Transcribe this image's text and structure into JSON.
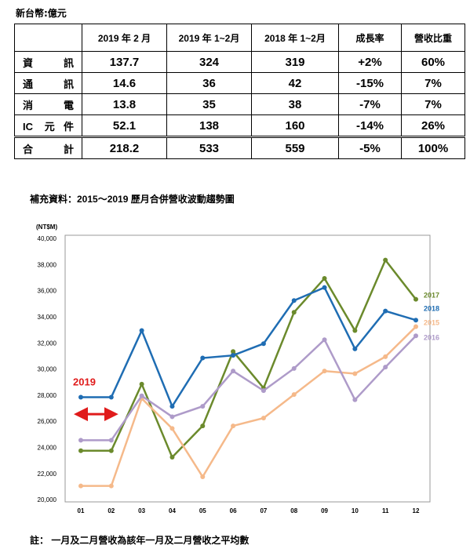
{
  "unit": "新台幣:億元",
  "table": {
    "columns": [
      "2019 年 2 月",
      "2019 年 1~2月",
      "2018 年 1~2月",
      "成長率",
      "營收比重"
    ],
    "rows": [
      {
        "label": "資訊",
        "cells": [
          "137.7",
          "324",
          "319",
          "+2%",
          "60%"
        ]
      },
      {
        "label": "通訊",
        "cells": [
          "14.6",
          "36",
          "42",
          "-15%",
          "7%"
        ]
      },
      {
        "label": "消電",
        "cells": [
          "13.8",
          "35",
          "38",
          "-7%",
          "7%"
        ]
      },
      {
        "label": "IC 元件",
        "cells": [
          "52.1",
          "138",
          "160",
          "-14%",
          "26%"
        ]
      },
      {
        "label": "合計",
        "cells": [
          "218.2",
          "533",
          "559",
          "-5%",
          "100%"
        ]
      }
    ]
  },
  "chart_data": {
    "type": "line",
    "title": "補充資料：2015～2019 歷月合併營收波動趨勢圖",
    "y_label": "(NT$M)",
    "categories": [
      "01",
      "02",
      "03",
      "04",
      "05",
      "06",
      "07",
      "08",
      "09",
      "10",
      "11",
      "12"
    ],
    "ylim": [
      20000,
      40000
    ],
    "yticks": [
      {
        "value": 20000,
        "label": "20,000"
      },
      {
        "value": 22000,
        "label": "22,000"
      },
      {
        "value": 24000,
        "label": "24,000"
      },
      {
        "value": 26000,
        "label": "26,000"
      },
      {
        "value": 28000,
        "label": "28,000"
      },
      {
        "value": 30000,
        "label": "30,000"
      },
      {
        "value": 32000,
        "label": "32,000"
      },
      {
        "value": 34000,
        "label": "34,000"
      },
      {
        "value": 36000,
        "label": "36,000"
      },
      {
        "value": 38000,
        "label": "38,000"
      },
      {
        "value": 40000,
        "label": "40,000"
      }
    ],
    "grid": false,
    "series": [
      {
        "name": "2017",
        "color": "#6b8a2c",
        "marker": "circle",
        "values": [
          23800,
          23800,
          28900,
          23300,
          25700,
          31400,
          28600,
          34400,
          37000,
          33000,
          38400,
          35400
        ]
      },
      {
        "name": "2018",
        "color": "#1f6db3",
        "marker": "circle",
        "values": [
          27900,
          27900,
          33000,
          27200,
          30900,
          31100,
          32000,
          35300,
          36300,
          31600,
          34500,
          33800
        ]
      },
      {
        "name": "2015",
        "color": "#f5b98a",
        "marker": "circle",
        "values": [
          21100,
          21100,
          27800,
          25500,
          21800,
          25700,
          26300,
          28100,
          29900,
          29700,
          31000,
          33300
        ]
      },
      {
        "name": "2016",
        "color": "#ae9bc9",
        "marker": "circle",
        "values": [
          24600,
          24600,
          28000,
          26400,
          27200,
          29900,
          28400,
          30100,
          32300,
          27700,
          30200,
          32600
        ]
      },
      {
        "name": "2019",
        "color": "#e01b1b",
        "marker": "arrow",
        "values": [
          26600,
          26600,
          null,
          null,
          null,
          null,
          null,
          null,
          null,
          null,
          null,
          null
        ]
      }
    ]
  },
  "note": "註： 一月及二月營收為該年一月及二月營收之平均數"
}
